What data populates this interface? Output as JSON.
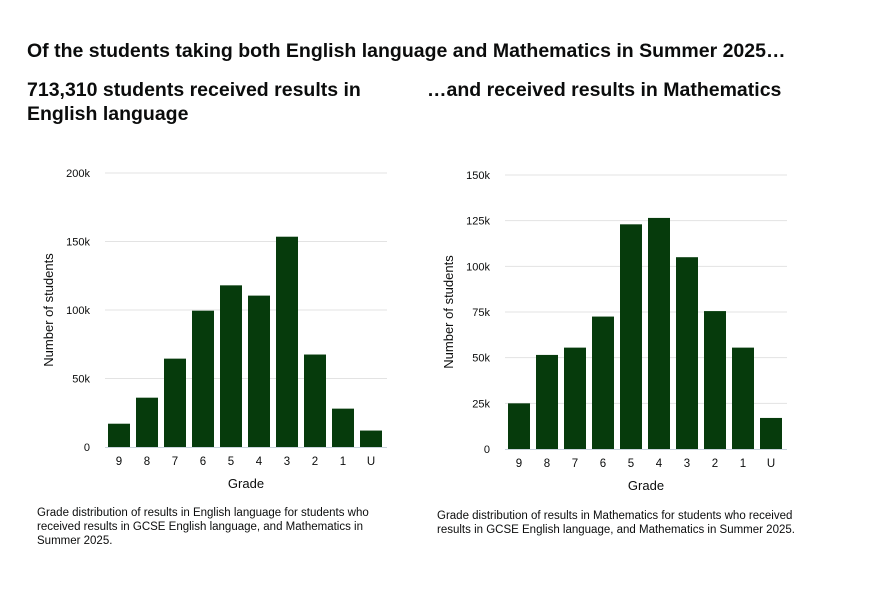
{
  "page": {
    "headline": "Of the students taking both English language and Mathematics in Summer 2025…",
    "left_subtitle": "713,310 students received results in English language",
    "right_subtitle": "…and received results in Mathematics",
    "left_caption": "Grade distribution of results in English language for students who received results in GCSE English language, and Mathematics in Summer 2025.",
    "right_caption": "Grade distribution of results in Mathematics for students who received results in GCSE English language, and Mathematics in Summer 2025."
  },
  "colors": {
    "bar": "#063b0c",
    "gridline": "#e3e3e3",
    "axis": "#c9d3dc",
    "text": "#0b0c0c"
  },
  "chart_data": [
    {
      "type": "bar",
      "title": "713,310 students received results in English language",
      "subject": "English language",
      "xlabel": "Grade",
      "ylabel": "Number of students",
      "categories": [
        "9",
        "8",
        "7",
        "6",
        "5",
        "4",
        "3",
        "2",
        "1",
        "U"
      ],
      "values": [
        17000,
        36000,
        64500,
        99500,
        118000,
        110500,
        153500,
        67500,
        28000,
        12000
      ],
      "yticks": [
        0,
        50000,
        100000,
        150000,
        200000
      ],
      "ytick_labels": [
        "0",
        "50k",
        "100k",
        "150k",
        "200k"
      ],
      "ylim": [
        0,
        200000
      ],
      "grid": true,
      "legend": null
    },
    {
      "type": "bar",
      "title": "…and received results in Mathematics",
      "subject": "Mathematics",
      "xlabel": "Grade",
      "ylabel": "Number of students",
      "categories": [
        "9",
        "8",
        "7",
        "6",
        "5",
        "4",
        "3",
        "2",
        "1",
        "U"
      ],
      "values": [
        25000,
        51500,
        55500,
        72500,
        123000,
        126500,
        105000,
        75500,
        55500,
        17000
      ],
      "yticks": [
        0,
        25000,
        50000,
        75000,
        100000,
        125000,
        150000
      ],
      "ytick_labels": [
        "0",
        "25k",
        "50k",
        "75k",
        "100k",
        "125k",
        "150k"
      ],
      "ylim": [
        0,
        150000
      ],
      "grid": true,
      "legend": null
    }
  ]
}
